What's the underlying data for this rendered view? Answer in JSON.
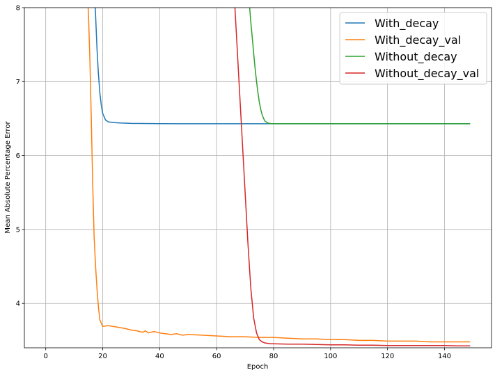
{
  "chart_data": {
    "type": "line",
    "title": "",
    "xlabel": "Epoch",
    "ylabel": "Mean Absolute Percentage Error",
    "xlim": [
      -7.5,
      156.5
    ],
    "ylim": [
      3.4,
      8.0
    ],
    "xticks": [
      0,
      20,
      40,
      60,
      80,
      100,
      120,
      140
    ],
    "yticks": [
      4,
      5,
      6,
      7,
      8
    ],
    "grid": true,
    "legend_position": "top-right",
    "series": [
      {
        "name": "With_decay",
        "color": "#1f77b4",
        "x": [
          17,
          17.5,
          18,
          18.5,
          19,
          19.5,
          20,
          21,
          22,
          24,
          26,
          30,
          40,
          50,
          60,
          70,
          80,
          90,
          100,
          110,
          120,
          130,
          140,
          149
        ],
        "y": [
          8.3,
          7.9,
          7.45,
          7.1,
          6.85,
          6.68,
          6.57,
          6.48,
          6.455,
          6.445,
          6.44,
          6.435,
          6.432,
          6.43,
          6.43,
          6.43,
          6.43,
          6.43,
          6.43,
          6.43,
          6.43,
          6.43,
          6.43,
          6.43
        ]
      },
      {
        "name": "With_decay_val",
        "color": "#ff7f0e",
        "x": [
          14.5,
          15,
          15.5,
          16,
          16.5,
          17,
          17.5,
          18,
          18.5,
          19,
          19.5,
          20,
          22,
          25,
          28,
          30,
          32,
          34,
          35,
          36,
          38,
          40,
          42,
          44,
          46,
          48,
          50,
          55,
          60,
          65,
          70,
          75,
          80,
          85,
          90,
          95,
          100,
          105,
          110,
          115,
          120,
          125,
          130,
          135,
          140,
          145,
          149
        ],
        "y": [
          8.3,
          7.9,
          7.3,
          6.5,
          5.6,
          4.9,
          4.5,
          4.2,
          3.95,
          3.78,
          3.73,
          3.69,
          3.7,
          3.68,
          3.66,
          3.64,
          3.63,
          3.61,
          3.63,
          3.6,
          3.62,
          3.6,
          3.59,
          3.58,
          3.59,
          3.57,
          3.58,
          3.57,
          3.56,
          3.55,
          3.55,
          3.54,
          3.54,
          3.53,
          3.52,
          3.52,
          3.51,
          3.51,
          3.5,
          3.5,
          3.49,
          3.49,
          3.49,
          3.48,
          3.48,
          3.48,
          3.48
        ]
      },
      {
        "name": "Without_decay",
        "color": "#2ca02c",
        "x": [
          71,
          71.5,
          72,
          72.5,
          73,
          73.5,
          74,
          74.5,
          75,
          75.5,
          76,
          76.5,
          77,
          78,
          79,
          80,
          85,
          90,
          100,
          110,
          120,
          130,
          140,
          149
        ],
        "y": [
          8.3,
          8.05,
          7.8,
          7.6,
          7.38,
          7.18,
          7.0,
          6.85,
          6.72,
          6.62,
          6.55,
          6.5,
          6.465,
          6.44,
          6.432,
          6.43,
          6.43,
          6.43,
          6.43,
          6.43,
          6.43,
          6.43,
          6.43,
          6.43
        ]
      },
      {
        "name": "Without_decay_val",
        "color": "#d62728",
        "x": [
          66,
          67,
          68,
          69,
          70,
          71,
          72,
          73,
          74,
          75,
          76,
          77,
          78,
          79,
          80,
          85,
          90,
          95,
          100,
          105,
          110,
          115,
          120,
          125,
          130,
          135,
          140,
          145,
          149
        ],
        "y": [
          8.3,
          7.6,
          6.9,
          6.2,
          5.5,
          4.8,
          4.2,
          3.8,
          3.6,
          3.51,
          3.48,
          3.465,
          3.46,
          3.455,
          3.455,
          3.45,
          3.45,
          3.445,
          3.44,
          3.44,
          3.435,
          3.435,
          3.43,
          3.43,
          3.43,
          3.43,
          3.43,
          3.425,
          3.425
        ]
      }
    ]
  }
}
